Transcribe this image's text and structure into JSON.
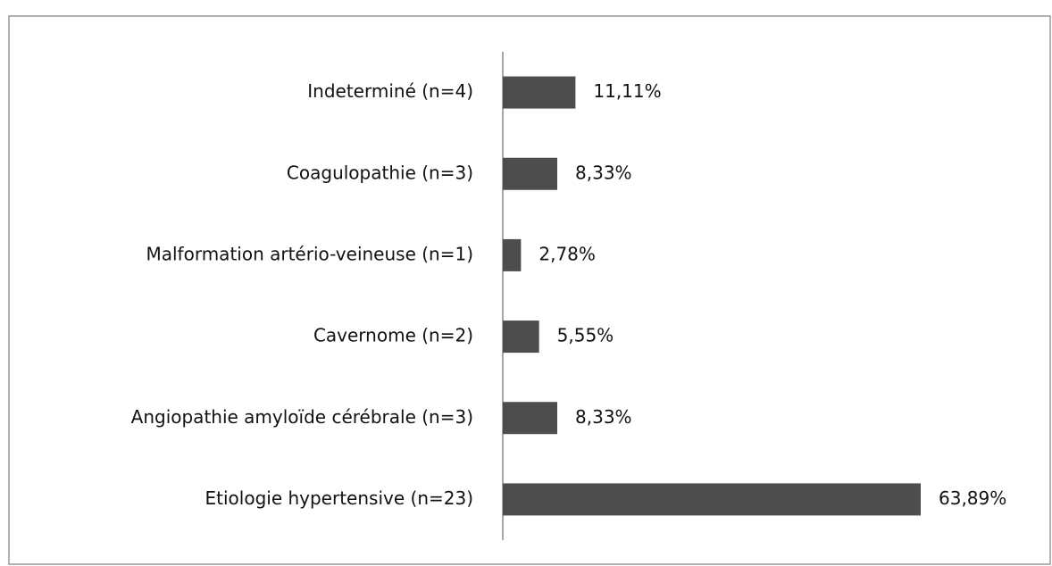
{
  "chart_data": {
    "type": "hbar",
    "categories": [
      "Indeterminé (n=4)",
      "Coagulopathie (n=3)",
      "Malformation artério-veineuse (n=1)",
      "Cavernome (n=2)",
      "Angiopathie amyloïde cérébrale (n=3)",
      "Etiologie hypertensive (n=23)"
    ],
    "values": [
      11.11,
      8.33,
      2.78,
      5.55,
      8.33,
      63.89
    ],
    "value_labels": [
      "11,11%",
      "8,33%",
      "2,78%",
      "5,55%",
      "8,33%",
      "63,89%"
    ],
    "color": "#4d4d4d"
  }
}
